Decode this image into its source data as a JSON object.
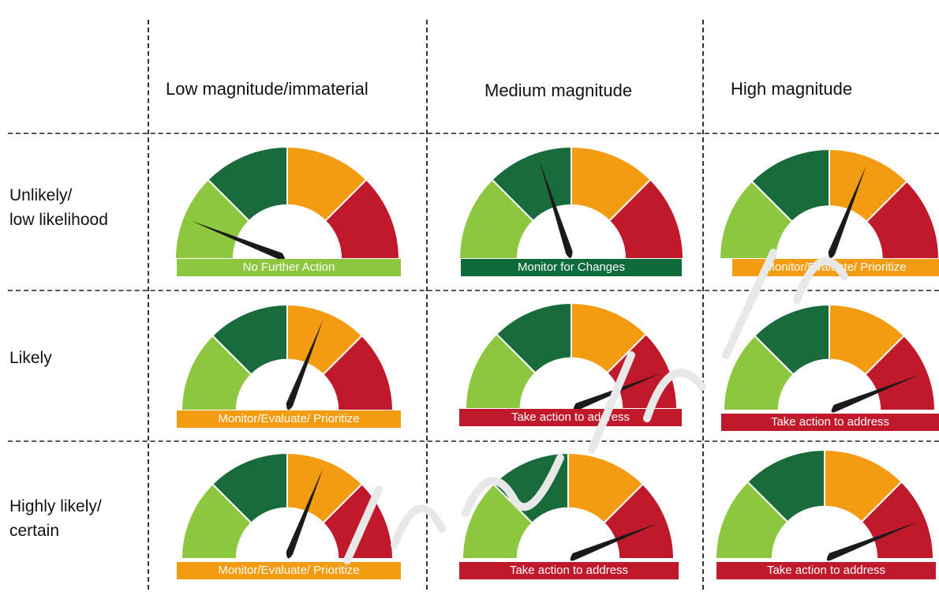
{
  "colors": {
    "low": "#8dc63f",
    "lowmed": "#1a6b3c",
    "medhigh": "#f39c12",
    "high": "#c0192b",
    "needle": "#1a1a1a",
    "grid": "#333333",
    "band_green_light": "#8dc63f",
    "band_green_dark": "#0f6b3a",
    "band_orange": "#f39c12",
    "band_red": "#c0192b"
  },
  "columns": [
    {
      "label": "Low magnitude/immaterial"
    },
    {
      "label": "Medium magnitude"
    },
    {
      "label": "High magnitude"
    }
  ],
  "rows": [
    {
      "label_lines": [
        "Unlikely/",
        "low likelihood"
      ]
    },
    {
      "label_lines": [
        "Likely"
      ]
    },
    {
      "label_lines": [
        "Highly likely/",
        "certain"
      ]
    }
  ],
  "gauges": [
    {
      "row": 0,
      "col": 0,
      "band_label": "No Further Action",
      "band_color": "band_green_light",
      "needle_level": 0.12
    },
    {
      "row": 0,
      "col": 1,
      "band_label": "Monitor for Changes",
      "band_color": "band_green_dark",
      "needle_level": 0.4
    },
    {
      "row": 0,
      "col": 2,
      "band_label": "Monitor/Evaluate/ Prioritize",
      "band_color": "band_orange",
      "needle_level": 0.62
    },
    {
      "row": 1,
      "col": 0,
      "band_label": "Monitor/Evaluate/ Prioritize",
      "band_color": "band_orange",
      "needle_level": 0.62
    },
    {
      "row": 1,
      "col": 1,
      "band_label": "Take action to address",
      "band_color": "band_red",
      "needle_level": 0.88
    },
    {
      "row": 1,
      "col": 2,
      "band_label": "Take action to address",
      "band_color": "band_red",
      "needle_level": 0.88
    },
    {
      "row": 2,
      "col": 0,
      "band_label": "Monitor/Evaluate/ Prioritize",
      "band_color": "band_orange",
      "needle_level": 0.62
    },
    {
      "row": 2,
      "col": 1,
      "band_label": "Take action to address",
      "band_color": "band_red",
      "needle_level": 0.88
    },
    {
      "row": 2,
      "col": 2,
      "band_label": "Take action to address",
      "band_color": "band_red",
      "needle_level": 0.88
    }
  ],
  "watermark_icon": "watermark-text"
}
